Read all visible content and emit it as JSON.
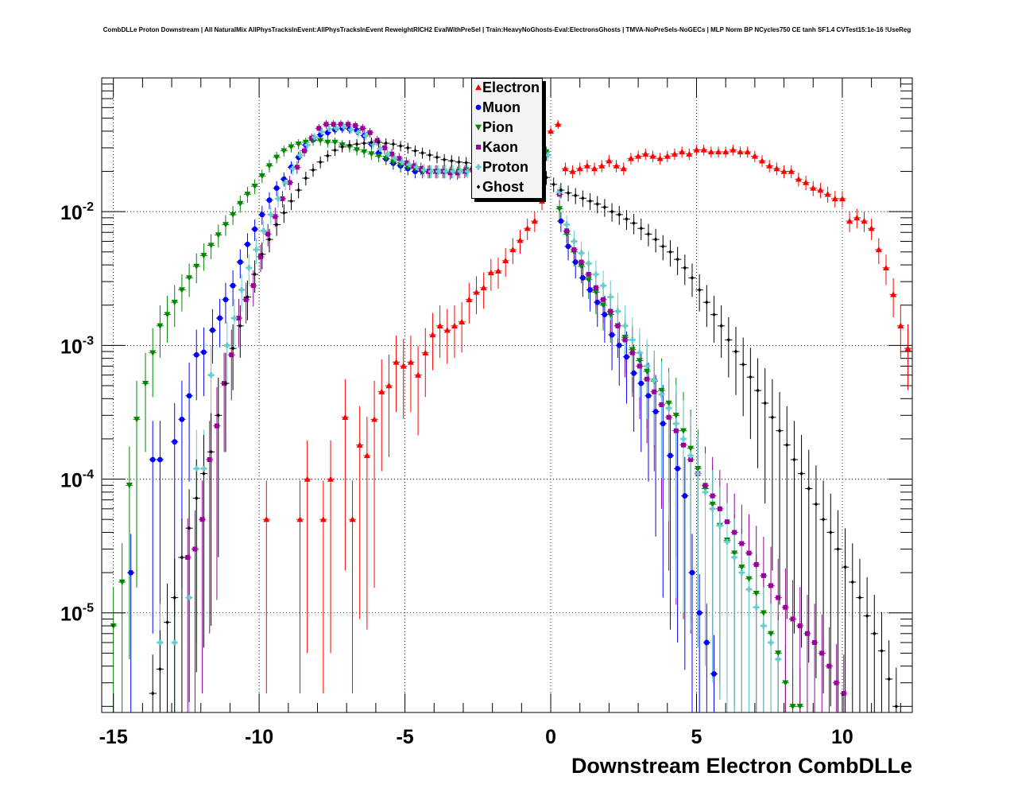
{
  "chart_data": {
    "type": "scatter",
    "title": "CombDLLe Proton Downstream | All NaturalMix AllPhysTracksInEvent:AllPhysTracksInEvent ReweightRICH2 EvalWithPreSel | Train:HeavyNoGhosts-Eval:ElectronsGhosts | TMVA-NoPreSels-NoGECs | MLP Norm BP NCycles750 CE tanh SF1.4 CVTest15:1e-16 !UseReg",
    "xlabel": "Downstream Electron CombDLLe",
    "ylabel": "",
    "xlim": [
      -15.4,
      12.4
    ],
    "ylim": [
      1.8e-06,
      0.1
    ],
    "yscale": "log",
    "grid": true,
    "legend_position": "top-center",
    "x_ticks": [
      -15,
      -10,
      -5,
      0,
      5,
      10
    ],
    "y_ticks": [
      1e-05,
      0.0001,
      0.001,
      0.01
    ],
    "y_tick_labels": [
      {
        "base": "10",
        "exp": "-5"
      },
      {
        "base": "10",
        "exp": "-4"
      },
      {
        "base": "10",
        "exp": "-3"
      },
      {
        "base": "10",
        "exp": "-2"
      }
    ],
    "series": [
      {
        "name": "Electron",
        "color": "#ff0000",
        "marker": "triangle-up",
        "x": [
          -9.75,
          -8.6,
          -8.35,
          -7.8,
          -7.55,
          -7.05,
          -6.8,
          -6.55,
          -6.3,
          -6.05,
          -5.8,
          -5.55,
          -5.3,
          -5.05,
          -4.8,
          -4.55,
          -4.3,
          -4.05,
          -3.8,
          -3.55,
          -3.3,
          -3.05,
          -2.8,
          -2.55,
          -2.3,
          -2.05,
          -1.8,
          -1.55,
          -1.3,
          -1.05,
          -0.8,
          -0.55,
          -0.3,
          0.0,
          0.25,
          0.5,
          0.75,
          1.0,
          1.25,
          1.5,
          1.75,
          2.0,
          2.25,
          2.5,
          2.75,
          3.0,
          3.25,
          3.5,
          3.75,
          4.0,
          4.25,
          4.5,
          4.75,
          5.0,
          5.25,
          5.5,
          5.75,
          6.0,
          6.25,
          6.5,
          6.75,
          7.0,
          7.25,
          7.5,
          7.75,
          8.0,
          8.25,
          8.5,
          8.75,
          9.0,
          9.25,
          9.5,
          9.75,
          10.0,
          10.25,
          10.5,
          10.75,
          11.0,
          11.25,
          11.5,
          11.75,
          12.0,
          12.25
        ],
        "y": [
          5e-05,
          5e-05,
          0.0001,
          5e-05,
          0.0001,
          0.00029,
          5e-05,
          0.00018,
          0.00015,
          0.00028,
          0.00045,
          0.0005,
          0.00075,
          0.0007,
          0.00075,
          0.0006,
          0.00088,
          0.0012,
          0.0014,
          0.0013,
          0.0014,
          0.0015,
          0.0022,
          0.0025,
          0.0027,
          0.0035,
          0.0036,
          0.0043,
          0.0052,
          0.0061,
          0.0075,
          0.0085,
          0.012,
          0.04,
          0.045,
          0.021,
          0.02,
          0.021,
          0.022,
          0.021,
          0.022,
          0.024,
          0.022,
          0.021,
          0.025,
          0.026,
          0.027,
          0.026,
          0.025,
          0.026,
          0.027,
          0.028,
          0.027,
          0.029,
          0.029,
          0.028,
          0.028,
          0.028,
          0.029,
          0.028,
          0.028,
          0.026,
          0.024,
          0.022,
          0.021,
          0.02,
          0.02,
          0.0175,
          0.0165,
          0.015,
          0.0145,
          0.0135,
          0.0125,
          0.0125,
          0.0085,
          0.009,
          0.0085,
          0.0075,
          0.0052,
          0.0038,
          0.0024,
          0.0014,
          0.00095
        ]
      },
      {
        "name": "Muon",
        "color": "#0000ff",
        "marker": "circle",
        "x": [
          -14.4,
          -13.65,
          -13.4,
          -12.9,
          -12.65,
          -12.4,
          -12.15,
          -11.9,
          -11.6,
          -11.35,
          -11.15,
          -10.9,
          -10.65,
          -10.4,
          -10.15,
          -9.9,
          -9.65,
          -9.4,
          -9.15,
          -8.9,
          -8.65,
          -8.4,
          -8.15,
          -7.9,
          -7.65,
          -7.4,
          -7.15,
          -6.9,
          -6.65,
          -6.4,
          -6.15,
          -5.9,
          -5.65,
          -5.4,
          -5.15,
          -4.9,
          -4.65,
          -4.4,
          -4.15,
          -3.9,
          -3.65,
          -3.4,
          -3.15,
          -2.9,
          -2.65,
          -2.4,
          -2.15,
          -1.9,
          -1.65,
          -1.4,
          -1.15,
          -0.9,
          -0.65,
          -0.4,
          -0.15,
          0.35,
          0.6,
          0.85,
          1.1,
          1.35,
          1.6,
          1.85,
          2.1,
          2.35,
          2.6,
          2.85,
          3.1,
          3.35,
          3.6,
          3.85,
          4.1,
          4.35,
          4.6,
          4.85,
          5.1,
          5.35,
          5.6
        ],
        "y": [
          2e-05,
          0.00014,
          0.00014,
          0.00019,
          0.00028,
          0.00042,
          0.00085,
          0.00089,
          0.0013,
          0.0016,
          0.0022,
          0.0028,
          0.0042,
          0.0057,
          0.0074,
          0.0095,
          0.0122,
          0.015,
          0.0175,
          0.0215,
          0.0255,
          0.0315,
          0.0345,
          0.0375,
          0.039,
          0.041,
          0.042,
          0.0415,
          0.0405,
          0.037,
          0.032,
          0.0275,
          0.0248,
          0.023,
          0.022,
          0.021,
          0.02,
          0.02,
          0.02,
          0.02,
          0.02,
          0.02,
          0.02,
          0.0205,
          0.021,
          0.0215,
          0.022,
          0.0225,
          0.0235,
          0.024,
          0.0245,
          0.025,
          0.026,
          0.027,
          0.0265,
          0.0085,
          0.0055,
          0.0042,
          0.0032,
          0.0026,
          0.0021,
          0.0017,
          0.0012,
          0.001,
          0.00082,
          0.00062,
          0.00052,
          0.00042,
          0.00032,
          0.00026,
          0.00015,
          0.00012,
          7.5e-05,
          2e-05,
          1e-05,
          6e-06,
          3.5e-06
        ]
      },
      {
        "name": "Pion",
        "color": "#008800",
        "marker": "triangle-down",
        "x": [
          -15.0,
          -14.7,
          -14.45,
          -14.2,
          -13.9,
          -13.65,
          -13.4,
          -13.15,
          -12.9,
          -12.65,
          -12.4,
          -12.15,
          -11.9,
          -11.65,
          -11.4,
          -11.15,
          -10.9,
          -10.65,
          -10.4,
          -10.15,
          -9.9,
          -9.65,
          -9.4,
          -9.15,
          -8.9,
          -8.65,
          -8.4,
          -8.15,
          -7.9,
          -7.65,
          -7.4,
          -7.15,
          -6.9,
          -6.65,
          -6.4,
          -6.15,
          -5.9,
          -5.65,
          -5.4,
          -5.15,
          -4.9,
          -4.65,
          -4.4,
          -4.15,
          -3.9,
          -3.65,
          -3.4,
          -3.15,
          -2.9,
          -2.65,
          -2.4,
          -2.15,
          -1.9,
          -1.65,
          -1.4,
          -1.15,
          -0.9,
          -0.65,
          -0.4,
          -0.15,
          0.3,
          0.55,
          0.8,
          1.05,
          1.3,
          1.55,
          1.8,
          2.05,
          2.3,
          2.55,
          2.8,
          3.05,
          3.3,
          3.55,
          3.8,
          4.05,
          4.3,
          4.55,
          4.8,
          5.05,
          5.3,
          5.55,
          5.8,
          6.05,
          6.3,
          6.55,
          6.8,
          7.05,
          7.3,
          7.55,
          7.8,
          8.05,
          8.3,
          8.55
        ],
        "y": [
          8e-06,
          1.7e-05,
          9e-05,
          0.00028,
          0.00052,
          0.00088,
          0.0014,
          0.0017,
          0.0021,
          0.0026,
          0.0032,
          0.0039,
          0.0047,
          0.0056,
          0.0067,
          0.008,
          0.0095,
          0.0115,
          0.0135,
          0.0155,
          0.0185,
          0.022,
          0.0255,
          0.0285,
          0.0305,
          0.032,
          0.033,
          0.034,
          0.034,
          0.033,
          0.033,
          0.0315,
          0.0305,
          0.029,
          0.028,
          0.027,
          0.026,
          0.025,
          0.0235,
          0.0225,
          0.0215,
          0.021,
          0.02,
          0.02,
          0.02,
          0.02,
          0.02,
          0.02,
          0.0205,
          0.021,
          0.022,
          0.0225,
          0.023,
          0.024,
          0.0245,
          0.025,
          0.0255,
          0.0265,
          0.0275,
          0.028,
          0.0105,
          0.0068,
          0.005,
          0.0039,
          0.0031,
          0.0025,
          0.002,
          0.0017,
          0.0014,
          0.00115,
          0.00093,
          0.00077,
          0.00064,
          0.00054,
          0.00046,
          0.00037,
          0.0003,
          0.00023,
          0.00017,
          0.00012,
          8.5e-05,
          6.5e-05,
          4.5e-05,
          3.5e-05,
          2.8e-05,
          2.2e-05,
          1.8e-05,
          1.4e-05,
          1e-05,
          7e-06,
          5e-06,
          3e-06,
          2e-06,
          2e-06
        ]
      },
      {
        "name": "Kaon",
        "color": "#990099",
        "marker": "square",
        "x": [
          -12.45,
          -12.2,
          -11.95,
          -11.7,
          -11.45,
          -11.2,
          -10.95,
          -10.7,
          -10.45,
          -10.2,
          -9.95,
          -9.7,
          -9.45,
          -9.2,
          -8.95,
          -8.7,
          -8.45,
          -8.2,
          -7.95,
          -7.7,
          -7.45,
          -7.2,
          -6.95,
          -6.7,
          -6.45,
          -6.2,
          -5.95,
          -5.7,
          -5.45,
          -5.2,
          -4.95,
          -4.7,
          -4.45,
          -4.2,
          -3.95,
          -3.7,
          -3.45,
          -3.2,
          -2.95,
          -2.7,
          -2.45,
          -2.2,
          -1.95,
          -1.7,
          -1.45,
          -1.2,
          -0.95,
          -0.7,
          -0.45,
          -0.2,
          0.3,
          0.55,
          0.8,
          1.05,
          1.3,
          1.55,
          1.8,
          2.05,
          2.3,
          2.55,
          2.8,
          3.05,
          3.3,
          3.55,
          3.8,
          4.05,
          4.3,
          4.55,
          4.8,
          5.05,
          5.3,
          5.55,
          5.8,
          6.05,
          6.3,
          6.55,
          6.8,
          7.05,
          7.3,
          7.55,
          7.8,
          8.05,
          8.3,
          8.55,
          8.8,
          9.05,
          9.3,
          9.55,
          9.8,
          10.05
        ],
        "y": [
          2.6e-05,
          3e-05,
          5e-05,
          0.00014,
          0.00025,
          0.00052,
          0.00085,
          0.0016,
          0.0022,
          0.0028,
          0.0046,
          0.0068,
          0.0092,
          0.0125,
          0.0165,
          0.0215,
          0.0285,
          0.0355,
          0.042,
          0.045,
          0.045,
          0.045,
          0.045,
          0.044,
          0.042,
          0.039,
          0.034,
          0.03,
          0.027,
          0.025,
          0.0232,
          0.022,
          0.021,
          0.02,
          0.02,
          0.02,
          0.0195,
          0.0195,
          0.02,
          0.0205,
          0.0205,
          0.021,
          0.0215,
          0.0225,
          0.023,
          0.0235,
          0.0245,
          0.025,
          0.0255,
          0.0265,
          0.0135,
          0.0072,
          0.0052,
          0.0042,
          0.0034,
          0.0027,
          0.0022,
          0.0018,
          0.0014,
          0.0011,
          0.00088,
          0.0007,
          0.00056,
          0.00045,
          0.00036,
          0.00029,
          0.00023,
          0.00018,
          0.00014,
          0.00011,
          9e-05,
          7.5e-05,
          6e-05,
          4.8e-05,
          4e-05,
          3.3e-05,
          2.8e-05,
          2.3e-05,
          1.9e-05,
          1.6e-05,
          1.3e-05,
          1.1e-05,
          9e-06,
          8e-06,
          7e-06,
          6e-06,
          5e-06,
          4e-06,
          3e-06,
          2.5e-06
        ]
      },
      {
        "name": "Proton",
        "color": "#66cccc",
        "marker": "cross",
        "x": [
          -13.4,
          -12.9,
          -12.4,
          -12.15,
          -11.9,
          -11.65,
          -11.1,
          -10.85,
          -10.6,
          -10.35,
          -10.1,
          -9.85,
          -9.6,
          -9.35,
          -9.1,
          -8.85,
          -8.6,
          -8.35,
          -8.1,
          -7.85,
          -7.6,
          -7.35,
          -7.1,
          -6.85,
          -6.6,
          -6.35,
          -6.1,
          -5.85,
          -5.6,
          -5.35,
          -5.1,
          -4.85,
          -4.6,
          -4.35,
          -4.1,
          -3.85,
          -3.6,
          -3.35,
          -3.1,
          -2.85,
          -2.6,
          -2.35,
          -2.1,
          -1.85,
          -1.6,
          -1.35,
          -1.1,
          -0.85,
          -0.6,
          -0.35,
          -0.1,
          0.3,
          0.55,
          0.8,
          1.05,
          1.3,
          1.55,
          1.8,
          2.05,
          2.3,
          2.55,
          2.8,
          3.05,
          3.3,
          3.55,
          3.8,
          4.05,
          4.3,
          4.55,
          4.8,
          5.05,
          5.3,
          5.55,
          5.8,
          6.05,
          6.3,
          6.55,
          6.8,
          7.05,
          7.3,
          7.55,
          7.8
        ],
        "y": [
          6e-06,
          6e-06,
          1.3e-05,
          0.00012,
          0.00012,
          0.0006,
          0.001,
          0.0016,
          0.0026,
          0.0038,
          0.0052,
          0.0072,
          0.0095,
          0.0125,
          0.0165,
          0.021,
          0.0265,
          0.0315,
          0.036,
          0.0395,
          0.0415,
          0.042,
          0.043,
          0.041,
          0.039,
          0.037,
          0.032,
          0.0295,
          0.027,
          0.025,
          0.0235,
          0.0225,
          0.0215,
          0.0205,
          0.02,
          0.02,
          0.02,
          0.02,
          0.02,
          0.02,
          0.0205,
          0.0205,
          0.021,
          0.022,
          0.0225,
          0.023,
          0.024,
          0.0245,
          0.025,
          0.0255,
          0.0265,
          0.014,
          0.008,
          0.006,
          0.0049,
          0.0041,
          0.0034,
          0.0028,
          0.0023,
          0.0018,
          0.0014,
          0.0011,
          0.00088,
          0.0007,
          0.00055,
          0.00043,
          0.00034,
          0.00026,
          0.0002,
          0.00015,
          0.00011,
          8e-05,
          6e-05,
          4.5e-05,
          3.4e-05,
          2.6e-05,
          2e-05,
          1.5e-05,
          1.1e-05,
          8e-06,
          6e-06,
          4.5e-06
        ]
      },
      {
        "name": "Ghost",
        "color": "#000000",
        "marker": "diamond",
        "x": [
          -13.65,
          -13.4,
          -13.15,
          -12.9,
          -12.65,
          -12.4,
          -12.15,
          -11.9,
          -11.65,
          -11.4,
          -11.15,
          -10.9,
          -10.65,
          -10.4,
          -10.15,
          -9.9,
          -9.65,
          -9.4,
          -9.15,
          -8.9,
          -8.65,
          -8.4,
          -8.15,
          -7.9,
          -7.65,
          -7.4,
          -7.15,
          -6.9,
          -6.65,
          -6.4,
          -6.15,
          -5.9,
          -5.65,
          -5.4,
          -5.15,
          -4.9,
          -4.65,
          -4.4,
          -4.15,
          -3.9,
          -3.65,
          -3.4,
          -3.15,
          -2.9,
          -2.65,
          -2.4,
          -2.15,
          -1.9,
          -1.65,
          -1.4,
          -1.15,
          -0.9,
          -0.65,
          -0.4,
          -0.15,
          0.1,
          0.35,
          0.6,
          0.85,
          1.1,
          1.35,
          1.6,
          1.85,
          2.1,
          2.35,
          2.6,
          2.85,
          3.1,
          3.35,
          3.6,
          3.85,
          4.1,
          4.35,
          4.6,
          4.85,
          5.1,
          5.35,
          5.6,
          5.85,
          6.1,
          6.35,
          6.6,
          6.85,
          7.1,
          7.35,
          7.6,
          7.85,
          8.1,
          8.35,
          8.6,
          8.85,
          9.1,
          9.35,
          9.6,
          9.85,
          10.1,
          10.35,
          10.6,
          10.85,
          11.1,
          11.35,
          11.6,
          11.85
        ],
        "y": [
          2.5e-06,
          3.8e-06,
          8.5e-06,
          1.3e-05,
          2.6e-05,
          4.3e-05,
          7.2e-05,
          0.00011,
          0.00016,
          0.0003,
          0.00052,
          0.00095,
          0.0014,
          0.0023,
          0.0034,
          0.0048,
          0.0062,
          0.008,
          0.0098,
          0.012,
          0.0145,
          0.0178,
          0.0205,
          0.0235,
          0.0262,
          0.0288,
          0.0305,
          0.0315,
          0.032,
          0.0325,
          0.033,
          0.033,
          0.0325,
          0.032,
          0.031,
          0.03,
          0.0285,
          0.0275,
          0.0265,
          0.0255,
          0.0245,
          0.024,
          0.0235,
          0.0232,
          0.023,
          0.0228,
          0.0226,
          0.0224,
          0.022,
          0.0218,
          0.0216,
          0.0212,
          0.02,
          0.019,
          0.018,
          0.016,
          0.0145,
          0.0138,
          0.0132,
          0.0126,
          0.012,
          0.0114,
          0.0108,
          0.01,
          0.0095,
          0.0088,
          0.0082,
          0.0075,
          0.0068,
          0.0062,
          0.0055,
          0.005,
          0.0044,
          0.0038,
          0.0032,
          0.0026,
          0.0021,
          0.0017,
          0.0014,
          0.0011,
          0.0009,
          0.00072,
          0.00058,
          0.00046,
          0.00037,
          0.00029,
          0.00023,
          0.00018,
          0.00014,
          0.00011,
          8.5e-05,
          6.5e-05,
          5e-05,
          4e-05,
          3e-05,
          2.2e-05,
          1.7e-05,
          1.3e-05,
          9.5e-06,
          7e-06,
          5.2e-06,
          3.2e-06,
          2e-06
        ]
      }
    ]
  }
}
